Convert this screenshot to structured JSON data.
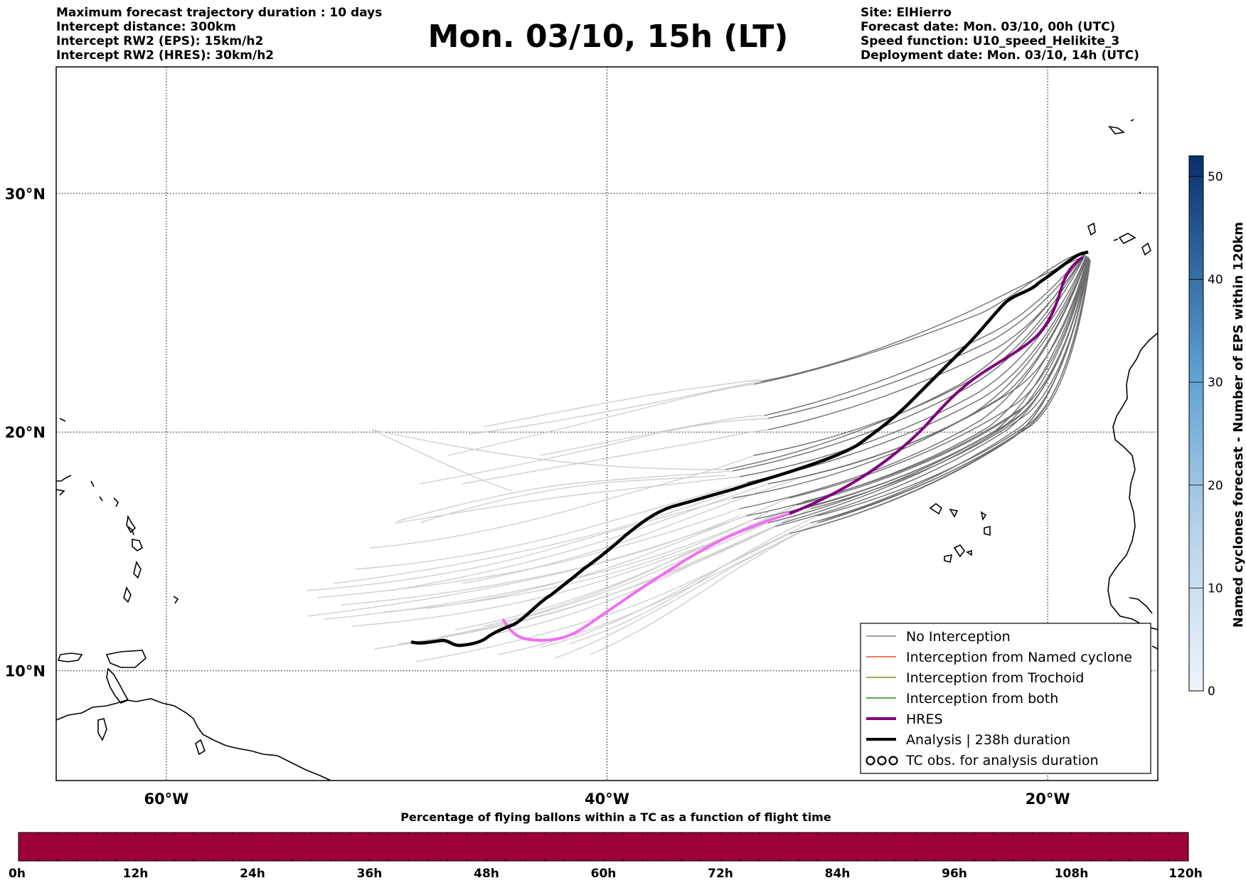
{
  "header": {
    "left_lines": [
      "Maximum forecast trajectory duration : 10 days",
      "Intercept distance: 300km",
      "Intercept RW2 (EPS):  15km/h2",
      "Intercept RW2 (HRES): 30km/h2"
    ],
    "title": "Mon. 03/10, 15h (LT)",
    "right_lines": [
      "Site: ElHierro",
      "Forecast date: Mon. 03/10, 00h (UTC)",
      "Speed function: U10_speed_Helikite_3",
      "Deployment date: Mon. 03/10, 14h (UTC)"
    ]
  },
  "map": {
    "lat_labels": [
      "30°N",
      "20°N",
      "10°N"
    ],
    "lon_labels": [
      "60°W",
      "40°W",
      "20°W"
    ],
    "lat_values": [
      30,
      20,
      10
    ],
    "lon_values": [
      -60,
      -40,
      -20
    ],
    "extent": {
      "lon_min": -65,
      "lon_max": -15,
      "lat_min": 5.4,
      "lat_max": 35.3
    }
  },
  "legend": {
    "items": [
      {
        "label": "No Interception",
        "color": "#808080",
        "style": "thin"
      },
      {
        "label": "Interception from Named cyclone",
        "color": "#e8562a",
        "style": "thin"
      },
      {
        "label": "Interception from Trochoid",
        "color": "#8a8a2a",
        "style": "thin"
      },
      {
        "label": "Interception from both",
        "color": "#2e8b2e",
        "style": "thin"
      },
      {
        "label": "HRES",
        "color": "#800080",
        "style": "thick"
      },
      {
        "label": "Analysis | 238h duration",
        "color": "#000000",
        "style": "thick"
      },
      {
        "label": "TC obs. for analysis duration",
        "color": "#000000",
        "style": "symbol"
      }
    ]
  },
  "colorbar_right": {
    "label": "Named cyclones forecast - Number of EPS within 120km",
    "ticks": [
      "0",
      "10",
      "20",
      "30",
      "40",
      "50"
    ],
    "tick_values": [
      0,
      10,
      20,
      30,
      40,
      50
    ],
    "max": 52,
    "color_low": "#e4eef8",
    "color_high": "#08306b"
  },
  "colorbar_bottom": {
    "title": "Percentage of flying ballons within a TC as a function of flight time",
    "ticks": [
      "0h",
      "12h",
      "24h",
      "36h",
      "48h",
      "60h",
      "72h",
      "84h",
      "96h",
      "108h",
      "120h"
    ],
    "fill_color": "#9e003a"
  }
}
